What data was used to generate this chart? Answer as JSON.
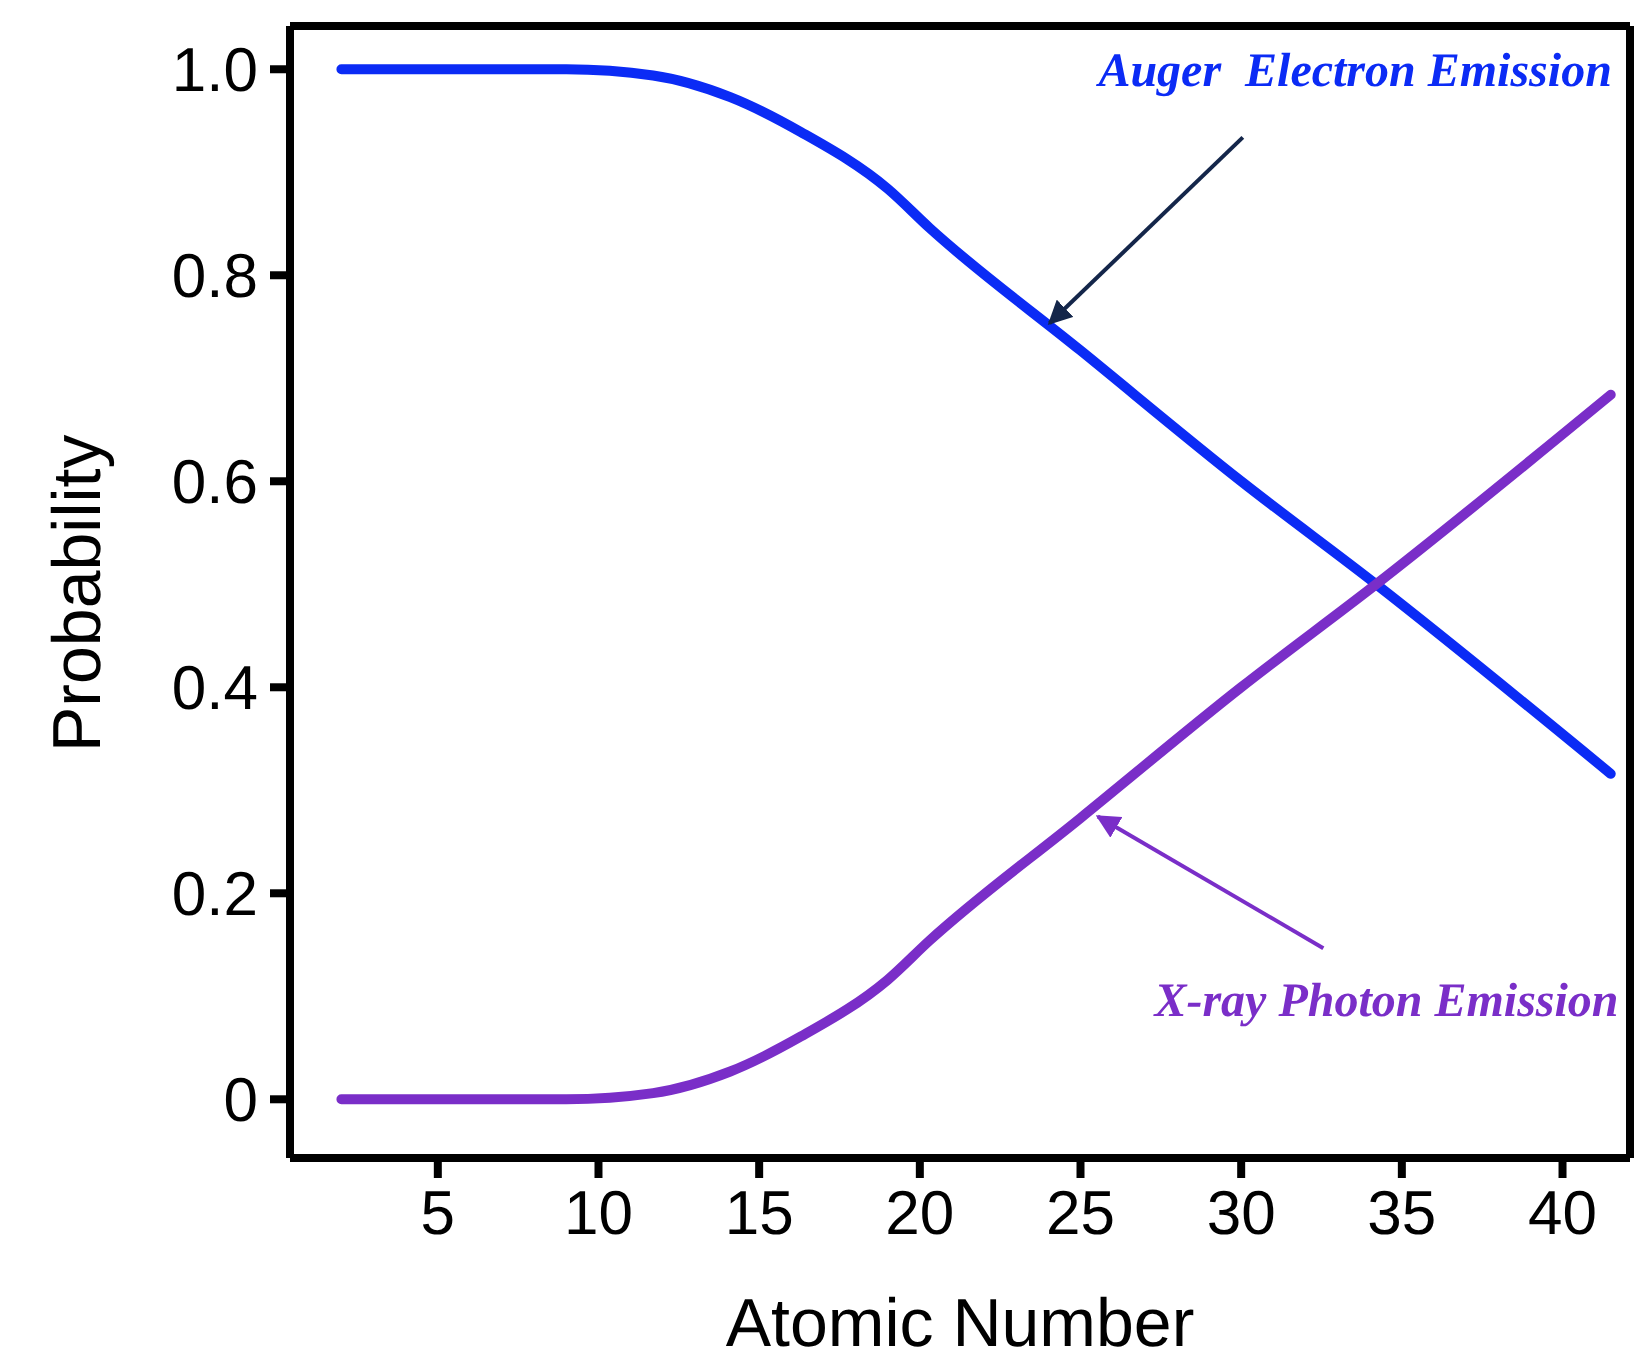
{
  "chart_data": {
    "type": "line",
    "xlabel": "Atomic Number",
    "ylabel": "Probability",
    "x": [
      2,
      9,
      11.7,
      14.1,
      16.3,
      19,
      20.3,
      25,
      30,
      34.2,
      41.5
    ],
    "series": [
      {
        "color": "#0b2bf5",
        "values": [
          1.0,
          1.0,
          0.994,
          0.973,
          0.939,
          0.884,
          0.846,
          0.727,
          0.6,
          0.5,
          0.316
        ]
      },
      {
        "color": "#7a2ec8",
        "values": [
          0,
          0,
          0.006,
          0.027,
          0.061,
          0.116,
          0.154,
          0.273,
          0.4,
          0.5,
          0.684
        ]
      }
    ],
    "xlim": [
      0.4,
      42.1
    ],
    "xticks": [
      5,
      10,
      15,
      20,
      25,
      30,
      35,
      40
    ],
    "ylim": [
      -0.057,
      1.042
    ],
    "yticks": [
      0,
      0.2,
      0.4,
      0.6,
      {
        "value": 1,
        "label": "1.0"
      },
      0.8
    ],
    "annotations": [
      {
        "text": "Auger  Electron Emission",
        "x": 24,
        "y": 0.752
      },
      {
        "text": "X-ray Photon Emission",
        "x": 25.5,
        "y": 0.274
      }
    ]
  }
}
